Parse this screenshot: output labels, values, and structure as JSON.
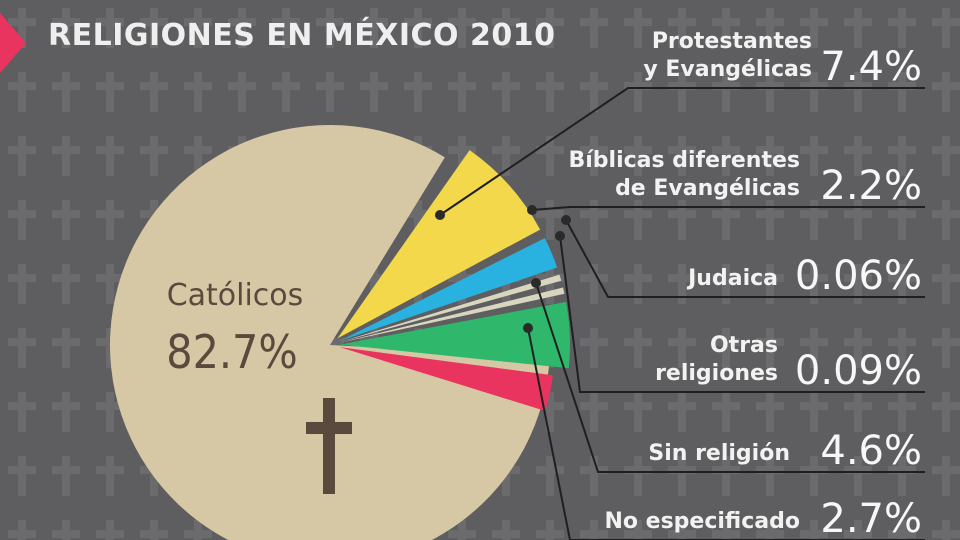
{
  "title": "RELIGIONES EN MÉXICO 2010",
  "colors": {
    "background": "#5e5e60",
    "accent": "#e8345e",
    "catolicos": "#d6c8a4",
    "protestantes": "#f2d84a",
    "biblicas": "#29b1df",
    "judaica": "#d9d6c0",
    "otras": "#d9d6c0",
    "sin_religion": "#2fb86b",
    "no_especificado": "#e8345e"
  },
  "icons": {
    "background_pattern": "cross-icon",
    "catolicos_symbol": "cross-icon"
  },
  "chart_data": {
    "type": "pie",
    "title": "RELIGIONES EN MÉXICO 2010",
    "unit": "%",
    "slices": [
      {
        "label": "Católicos",
        "value": 82.7,
        "display": "82.7%"
      },
      {
        "label": "Protestantes y Evangélicas",
        "value": 7.4,
        "display": "7.4%"
      },
      {
        "label": "Bíblicas diferentes de Evangélicas",
        "value": 2.2,
        "display": "2.2%"
      },
      {
        "label": "Judaica",
        "value": 0.06,
        "display": "0.06%"
      },
      {
        "label": "Otras religiones",
        "value": 0.09,
        "display": "0.09%"
      },
      {
        "label": "Sin religión",
        "value": 4.6,
        "display": "4.6%"
      },
      {
        "label": "No especificado",
        "value": 2.7,
        "display": "2.7%"
      }
    ],
    "label_lines": [
      [
        "Católicos"
      ],
      [
        "Protestantes",
        "y Evangélicas"
      ],
      [
        "Bíblicas diferentes",
        "de Evangélicas"
      ],
      [
        "Judaica"
      ],
      [
        "Otras",
        "religiones"
      ],
      [
        "Sin religión"
      ],
      [
        "No especificado"
      ]
    ]
  }
}
